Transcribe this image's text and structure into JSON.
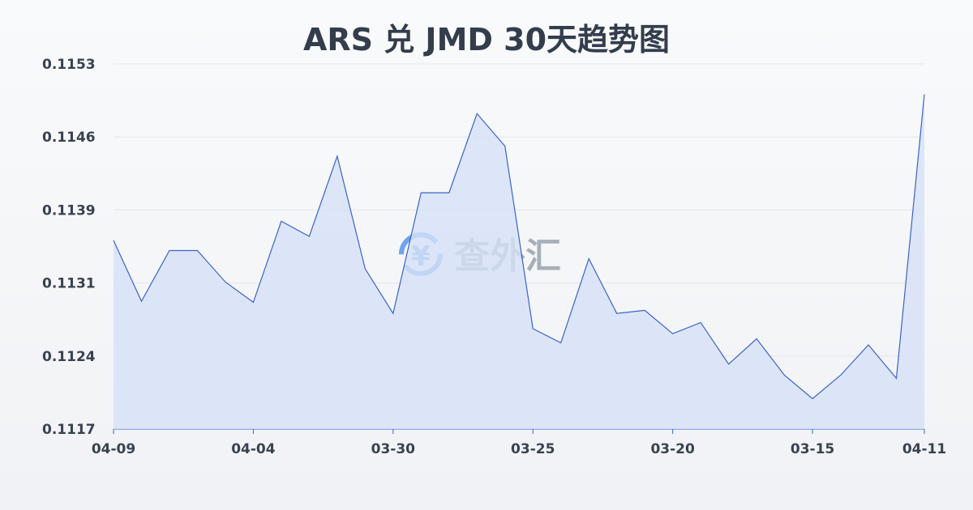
{
  "title": "ARS 兑 JMD 30天趋势图",
  "watermark": "查外汇",
  "colors": {
    "line": "#3a63c9",
    "fill": "#d6e1f7",
    "watermark_icon": "#6fa3ef"
  },
  "chart_data": {
    "type": "area",
    "title": "ARS 兑 JMD 30天趋势图",
    "xlabel": "",
    "ylabel": "",
    "ylim": [
      0.1117,
      0.1153
    ],
    "y_ticks": [
      "0.1153",
      "0.1146",
      "0.1139",
      "0.1131",
      "0.1124",
      "0.1117"
    ],
    "x_tick_labels": [
      {
        "index": 0,
        "label": "04-09"
      },
      {
        "index": 5,
        "label": "04-04"
      },
      {
        "index": 10,
        "label": "03-30"
      },
      {
        "index": 15,
        "label": "03-25"
      },
      {
        "index": 20,
        "label": "03-20"
      },
      {
        "index": 25,
        "label": "03-15"
      },
      {
        "index": 29,
        "label": "04-11"
      }
    ],
    "grid": true,
    "values": [
      0.11356,
      0.11296,
      0.11346,
      0.11346,
      0.11315,
      0.11295,
      0.11375,
      0.1136,
      0.11439,
      0.11328,
      0.11284,
      0.11403,
      0.11403,
      0.11481,
      0.11449,
      0.11269,
      0.11255,
      0.11338,
      0.11284,
      0.11287,
      0.11264,
      0.11275,
      0.11234,
      0.11259,
      0.11223,
      0.112,
      0.11223,
      0.11253,
      0.1122,
      0.115
    ]
  }
}
